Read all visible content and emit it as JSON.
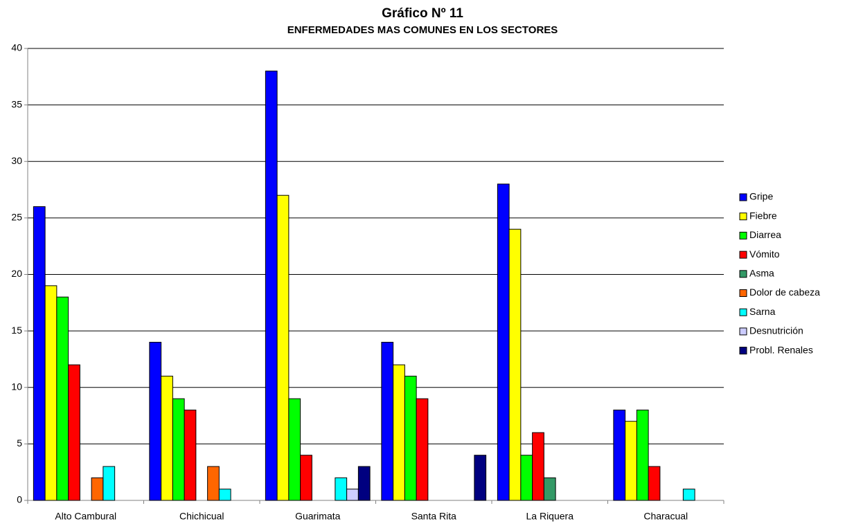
{
  "chart_data": {
    "type": "bar",
    "title": "Gráfico Nº 11",
    "subtitle": "ENFERMEDADES MAS COMUNES EN LOS SECTORES",
    "categories": [
      "Alto Cambural",
      "Chichicual",
      "Guarimata",
      "Santa Rita",
      "La Riquera",
      "Characual"
    ],
    "series": [
      {
        "name": "Gripe",
        "color": "#0000ff",
        "values": [
          26,
          14,
          38,
          14,
          28,
          8
        ]
      },
      {
        "name": "Fiebre",
        "color": "#ffff00",
        "values": [
          19,
          11,
          27,
          12,
          24,
          7
        ]
      },
      {
        "name": "Diarrea",
        "color": "#00ff00",
        "values": [
          18,
          9,
          9,
          11,
          4,
          8
        ]
      },
      {
        "name": "Vómito",
        "color": "#ff0000",
        "values": [
          12,
          8,
          4,
          9,
          6,
          3
        ]
      },
      {
        "name": "Asma",
        "color": "#339966",
        "values": [
          0,
          0,
          0,
          0,
          2,
          0
        ]
      },
      {
        "name": "Dolor de cabeza",
        "color": "#ff6600",
        "values": [
          2,
          3,
          0,
          0,
          0,
          0
        ]
      },
      {
        "name": "Sarna",
        "color": "#00ffff",
        "values": [
          3,
          1,
          2,
          0,
          0,
          1
        ]
      },
      {
        "name": "Desnutrición",
        "color": "#ccccff",
        "values": [
          0,
          0,
          1,
          0,
          0,
          0
        ]
      },
      {
        "name": "Probl. Renales",
        "color": "#000080",
        "values": [
          0,
          0,
          3,
          4,
          0,
          0
        ]
      }
    ],
    "ylim": [
      0,
      40
    ],
    "yticks": [
      0,
      5,
      10,
      15,
      20,
      25,
      30,
      35,
      40
    ],
    "grid": true,
    "legend": "right"
  }
}
